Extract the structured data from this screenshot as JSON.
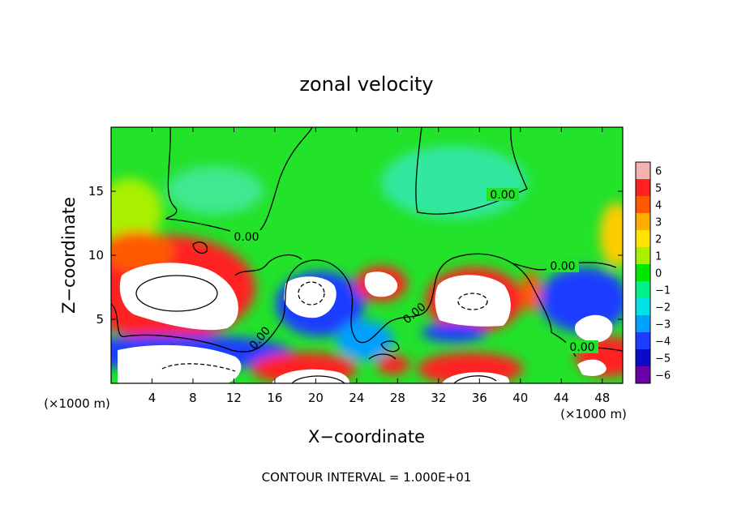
{
  "chart_data": {
    "type": "heatmap",
    "title": "zonal velocity",
    "xlabel": "X−coordinate",
    "ylabel": "Z−coordinate",
    "x_unit_left": "(×1000 m)",
    "x_unit_right": "(×1000 m)",
    "xlim": [
      0,
      50
    ],
    "ylim": [
      0,
      20
    ],
    "x_ticks": [
      4,
      8,
      12,
      16,
      20,
      24,
      28,
      32,
      36,
      40,
      44,
      48
    ],
    "y_ticks": [
      5,
      10,
      15
    ],
    "colorbar": {
      "range": [
        -6,
        6
      ],
      "ticks": [
        "6",
        "5",
        "4",
        "3",
        "2",
        "1",
        "0",
        "−1",
        "−2",
        "−3",
        "−4",
        "−5",
        "−6"
      ],
      "colors": [
        "#f5b0b0",
        "#ff2020",
        "#ff5a00",
        "#ffae00",
        "#ffe200",
        "#a8f000",
        "#00e800",
        "#00f08a",
        "#00e2e8",
        "#00a0ff",
        "#1e3cff",
        "#0a0ac8",
        "#6a00a8"
      ]
    },
    "contour_labels": [
      "0.00",
      "0.00",
      "0.00",
      "0.00",
      "0.00",
      "0.00"
    ],
    "contour_interval_label": "CONTOUR INTERVAL = 1.000E+01",
    "features": [
      {
        "x": 6,
        "z": 7,
        "u": 9
      },
      {
        "x": 5,
        "z": 1.8,
        "u": -8
      },
      {
        "x": 20,
        "z": 7,
        "u": -9
      },
      {
        "x": 27,
        "z": 7.5,
        "u": 7
      },
      {
        "x": 35,
        "z": 6.5,
        "u": 9
      },
      {
        "x": 20,
        "z": 0.5,
        "u": 8
      },
      {
        "x": 34,
        "z": 0.5,
        "u": 6
      },
      {
        "x": 47,
        "z": 4.5,
        "u": -7
      },
      {
        "x": 46,
        "z": 1.5,
        "u": 5
      },
      {
        "x": 22,
        "z": 15,
        "u": -1
      },
      {
        "x": 38,
        "z": 14,
        "u": -1.2
      }
    ]
  }
}
